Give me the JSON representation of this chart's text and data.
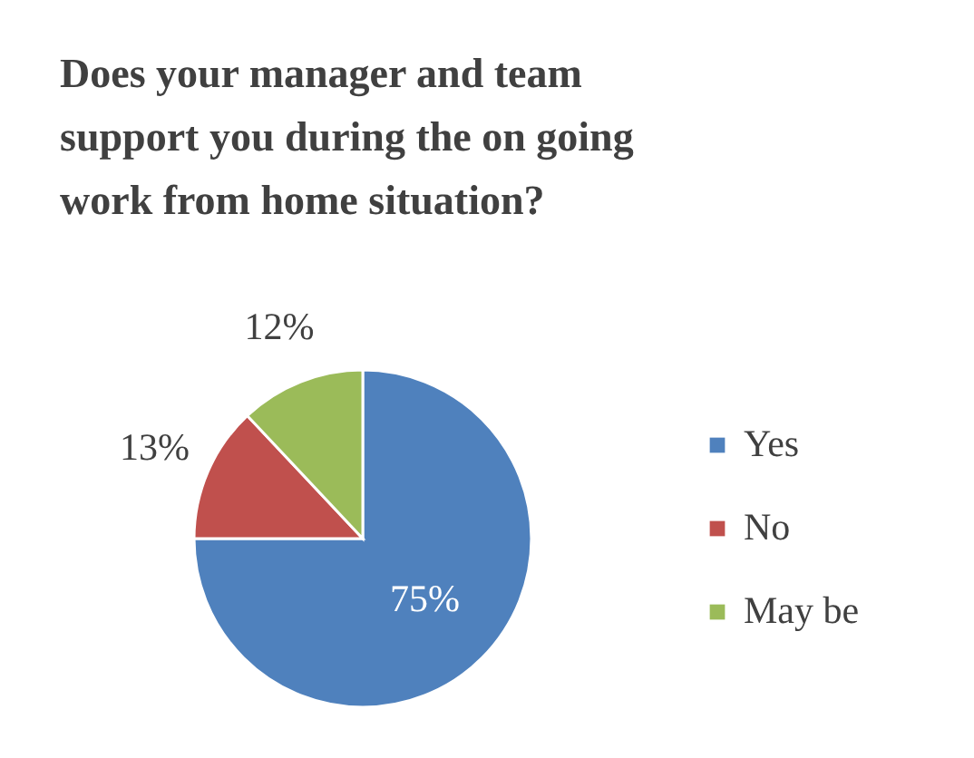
{
  "chart_data": {
    "type": "pie",
    "title": "Does your manager and team support you during the on going work from home situation?",
    "categories": [
      "Yes",
      "No",
      "May be"
    ],
    "values": [
      75,
      13,
      12
    ],
    "colors": [
      "#4f81bd",
      "#c0504d",
      "#9bbb59"
    ],
    "value_labels": [
      "75%",
      "13%",
      "12%"
    ],
    "legend": "right"
  }
}
